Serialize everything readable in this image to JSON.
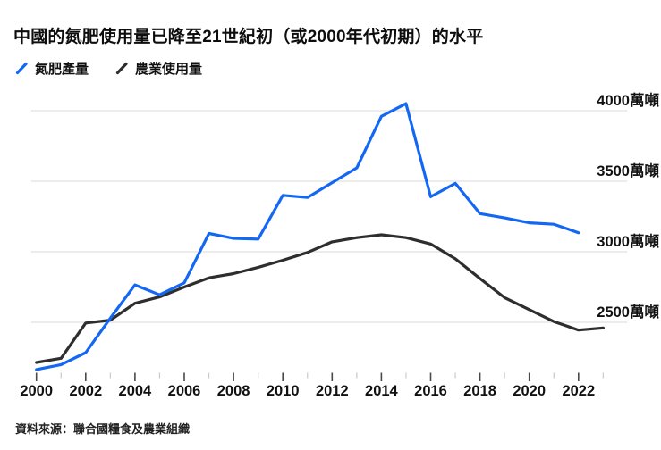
{
  "header": {
    "title": "中國的氮肥使用量已降至21世紀初（或2000年代初期）的水平"
  },
  "legend": [
    {
      "label": "氮肥產量",
      "color": "#1467f2",
      "icon": "slash-line-icon"
    },
    {
      "label": "農業使用量",
      "color": "#2e2e2e",
      "icon": "slash-line-icon"
    }
  ],
  "footer": {
    "source": "資料來源：聯合國糧食及農業組織"
  },
  "colors": {
    "production_line": "#1467f2",
    "usage_line": "#2e2e2e",
    "gridline": "#e0e0e0",
    "tick_major": "#4a4a4a",
    "tick_minor": "#c9c9c9",
    "axis_text": "#111111"
  },
  "chart_data": {
    "type": "line",
    "title": "中國的氮肥使用量已降至21世紀初（或2000年代初期）的水平",
    "unit": "萬噸",
    "x": [
      2000,
      2001,
      2002,
      2003,
      2004,
      2005,
      2006,
      2007,
      2008,
      2009,
      2010,
      2011,
      2012,
      2013,
      2014,
      2015,
      2016,
      2017,
      2018,
      2019,
      2020,
      2021,
      2022,
      2023
    ],
    "series": [
      {
        "name": "氮肥產量",
        "color": "#1467f2",
        "values": [
          2165,
          2200,
          2285,
          2530,
          2765,
          2695,
          2780,
          3130,
          3095,
          3090,
          3400,
          3385,
          3490,
          3595,
          3960,
          4050,
          3390,
          3485,
          3270,
          3240,
          3205,
          3195,
          3135,
          null
        ]
      },
      {
        "name": "農業使用量",
        "color": "#2e2e2e",
        "values": [
          2215,
          2245,
          2495,
          2515,
          2635,
          2680,
          2750,
          2815,
          2845,
          2890,
          2940,
          2995,
          3070,
          3100,
          3120,
          3100,
          3055,
          2950,
          2810,
          2675,
          2590,
          2505,
          2445,
          2460
        ]
      }
    ],
    "x_tick_major_years": [
      2000,
      2002,
      2004,
      2006,
      2008,
      2010,
      2012,
      2014,
      2016,
      2018,
      2020,
      2022
    ],
    "x_tick_labels": [
      "2000",
      "2002",
      "2004",
      "2006",
      "2008",
      "2010",
      "2012",
      "2014",
      "2016",
      "2018",
      "2020",
      "2022"
    ],
    "y_ticks": [
      {
        "value": 4000,
        "label": "4000萬噸"
      },
      {
        "value": 3500,
        "label": "3500萬噸"
      },
      {
        "value": 3000,
        "label": "3000萬噸"
      },
      {
        "value": 2500,
        "label": "2500萬噸"
      }
    ],
    "xlim": [
      2000,
      2023
    ],
    "ylim": [
      2100,
      4100
    ],
    "grid": "horizontal-only",
    "legend_position": "top-left"
  }
}
